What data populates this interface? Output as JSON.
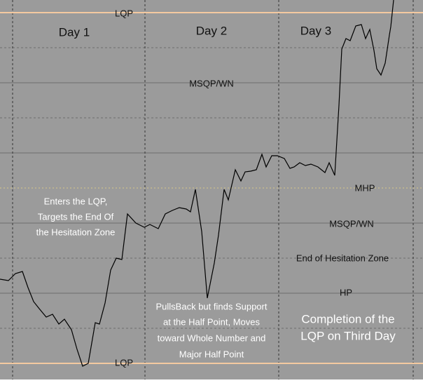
{
  "chart_data": {
    "type": "line",
    "color": "#000000",
    "xlim": [
      0,
      604
    ],
    "ylim": [
      -4.6,
      103.6
    ],
    "x": [
      0,
      12,
      22,
      32,
      40,
      48,
      56,
      66,
      75,
      84,
      92,
      102,
      110,
      118,
      126,
      136,
      142,
      150,
      158,
      166,
      174,
      182,
      194,
      206,
      214,
      226,
      236,
      246,
      256,
      266,
      272,
      279,
      288,
      296,
      306,
      312,
      320,
      326,
      336,
      344,
      350,
      358,
      366,
      374,
      380,
      388,
      396,
      406,
      414,
      420,
      428,
      436,
      444,
      454,
      464,
      470,
      478,
      484,
      488,
      494,
      500,
      508,
      516,
      522,
      528,
      534,
      538,
      544,
      550,
      556,
      558,
      562
    ],
    "values": [
      24,
      23.6,
      25.6,
      26.2,
      21.6,
      17.6,
      15.6,
      13.2,
      14,
      11.2,
      12.6,
      9.6,
      4,
      -0.8,
      0,
      11.6,
      11.2,
      17.2,
      26.6,
      30,
      29.6,
      42.6,
      40,
      38.8,
      39.6,
      38.4,
      42.6,
      43.6,
      44.4,
      44,
      43.2,
      49.6,
      37.6,
      18.6,
      28.6,
      36.6,
      49.6,
      46.6,
      55.2,
      52,
      54.6,
      54.8,
      55.2,
      59.6,
      56,
      59.2,
      59.2,
      58.4,
      55.6,
      56,
      57.2,
      56.4,
      56.8,
      56,
      54.4,
      57.2,
      53.6,
      73.6,
      89.6,
      92.6,
      92,
      96.2,
      96.6,
      92.6,
      95.2,
      89.2,
      84,
      82.2,
      85.6,
      93.6,
      96,
      103.6
    ],
    "day_labels": [
      "Day 1",
      "Day 2",
      "Day 3"
    ],
    "level_labels": [
      "LQP",
      "LQP",
      "MSQP/WN",
      "MHP",
      "MSQP/WN",
      "End of Hesitation Zone",
      "HP"
    ],
    "annotations": [
      [
        "Enters the LQP,",
        "Targets the End Of",
        "the Hesitation Zone"
      ],
      [
        "PullsBack but finds Support",
        "at the Half Point, Moves",
        "toward Whole Number and",
        "Major Half Point"
      ],
      [
        "Completion of the",
        "LQP on Third Day"
      ]
    ]
  }
}
